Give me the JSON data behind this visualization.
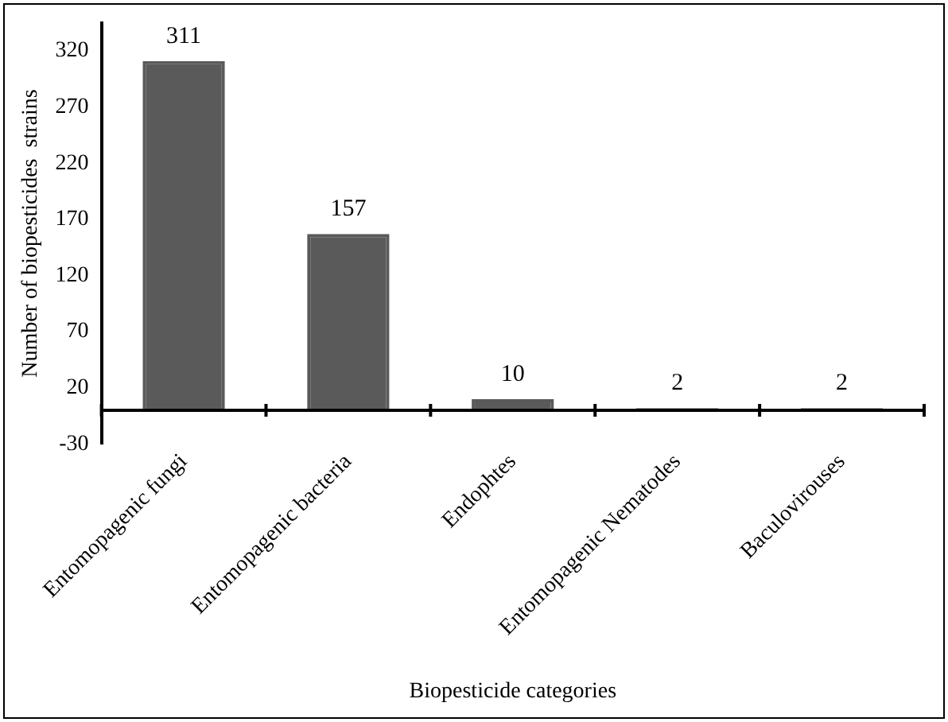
{
  "chart_data": {
    "type": "bar",
    "xlabel": "Biopesticide categories",
    "ylabel": "Number of biopesticides  strains",
    "categories": [
      "Entomopagenic fungi",
      "Entomopagenic bacteria",
      "Endophtes",
      "Entomopagenic Nematodes",
      "Baculovirouses"
    ],
    "values": [
      311,
      157,
      10,
      2,
      2
    ],
    "color": "#5a5a5a",
    "ylim": [
      -30,
      345
    ],
    "yticks": [
      -30,
      20,
      70,
      120,
      170,
      220,
      270,
      320
    ],
    "grid": false,
    "data_labels": true,
    "legend": false
  }
}
